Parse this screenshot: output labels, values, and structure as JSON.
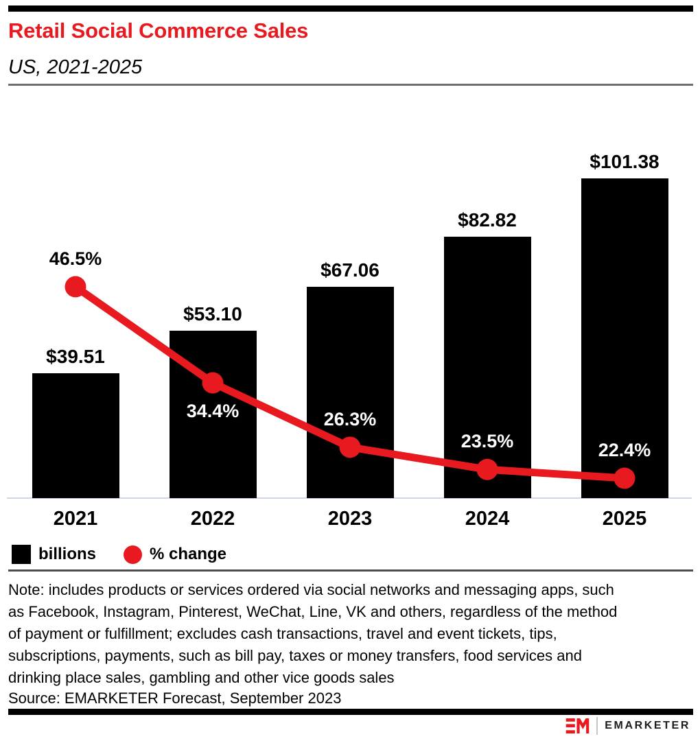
{
  "chart_data": {
    "type": "bar+line",
    "title": "Retail Social Commerce Sales",
    "subtitle": "US, 2021-2025",
    "categories": [
      "2021",
      "2022",
      "2023",
      "2024",
      "2025"
    ],
    "series": [
      {
        "name": "billions",
        "type": "bar",
        "unit": "USD billions",
        "color": "#000000",
        "values": [
          39.51,
          53.1,
          67.06,
          82.82,
          101.38
        ],
        "labels": [
          "$39.51",
          "$53.10",
          "$67.06",
          "$82.82",
          "$101.38"
        ]
      },
      {
        "name": "% change",
        "type": "line",
        "unit": "percent",
        "color": "#e8191f",
        "values": [
          46.5,
          34.4,
          26.3,
          23.5,
          22.4
        ],
        "labels": [
          "46.5%",
          "34.4%",
          "26.3%",
          "23.5%",
          "22.4%"
        ],
        "label_colors": [
          "#000000",
          "#ffffff",
          "#ffffff",
          "#ffffff",
          "#ffffff"
        ],
        "label_side": [
          "above",
          "below",
          "above",
          "above",
          "above"
        ]
      }
    ],
    "grid": false,
    "value_axis_labels": false,
    "legend_position": "bottom-left"
  },
  "note": {
    "lines": [
      "Note: includes products or services ordered via social networks and messaging apps, such",
      "as Facebook, Instagram, Pinterest, WeChat, Line, VK and others, regardless of the method",
      "of payment or fulfillment; excludes cash transactions, travel and event tickets, tips,",
      "subscriptions, payments, such as bill pay, taxes or money transfers, food services and",
      "drinking place sales, gambling and other vice goods sales"
    ]
  },
  "source": "Source: EMARKETER Forecast, September 2023",
  "footer": {
    "brand": "EMARKETER",
    "logo_icon": "em-monogram-icon"
  },
  "colors": {
    "accent_red": "#e8191f",
    "axis_line": "#cdd6ea",
    "header_rule": "#6e6e6e",
    "legend_rule": "#4d4d4d",
    "bar_black": "#000000"
  }
}
